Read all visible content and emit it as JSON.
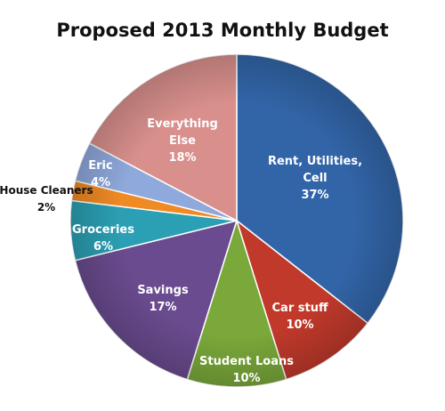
{
  "chart_data": {
    "type": "pie",
    "title": "Proposed 2013 Monthly Budget",
    "slices": [
      {
        "label_lines": [
          "Rent, Utilities,",
          "Cell"
        ],
        "value": 37,
        "value_label": "37%",
        "color": "#3265a8"
      },
      {
        "label_lines": [
          "Car stuff"
        ],
        "value": 10,
        "value_label": "10%",
        "color": "#c0392b"
      },
      {
        "label_lines": [
          "Student Loans"
        ],
        "value": 10,
        "value_label": "10%",
        "color": "#7aa83a"
      },
      {
        "label_lines": [
          "Savings"
        ],
        "value": 17,
        "value_label": "17%",
        "color": "#6a4b8f"
      },
      {
        "label_lines": [
          "Groceries"
        ],
        "value": 6,
        "value_label": "6%",
        "color": "#2b9fb3"
      },
      {
        "label_lines": [
          "House Cleaners"
        ],
        "value": 2,
        "value_label": "2%",
        "color": "#f08a24"
      },
      {
        "label_lines": [
          "Eric"
        ],
        "value": 4,
        "value_label": "4%",
        "color": "#8fa9dc"
      },
      {
        "label_lines": [
          "Everything",
          "Else"
        ],
        "value": 18,
        "value_label": "18%",
        "color": "#d9908c"
      }
    ]
  }
}
